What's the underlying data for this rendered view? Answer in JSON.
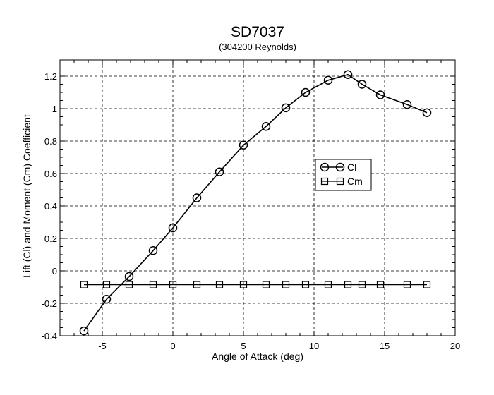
{
  "chart_data": {
    "type": "line",
    "title": "SD7037",
    "subtitle": "(304200 Reynolds)",
    "xlabel": "Angle of Attack (deg)",
    "ylabel": "Lift (Cl) and Moment (Cm) Coefficient",
    "xlim": [
      -8,
      20
    ],
    "ylim": [
      -0.4,
      1.3
    ],
    "xticks": [
      -5,
      0,
      5,
      10,
      15,
      20
    ],
    "xtick_labels": [
      "-5",
      "0",
      "5",
      "10",
      "15",
      "20"
    ],
    "yticks": [
      -0.4,
      -0.2,
      0,
      0.2,
      0.4,
      0.6,
      0.8,
      1,
      1.2
    ],
    "ytick_labels": [
      "-0.4",
      "-0.2",
      "0",
      "0.2",
      "0.4",
      "0.6",
      "0.8",
      "1",
      "1.2"
    ],
    "grid": true,
    "legend_position": "middle-right",
    "series": [
      {
        "name": "Cl",
        "marker": "circle",
        "color": "#000000",
        "x": [
          -6.3,
          -4.7,
          -3.1,
          -1.4,
          0.0,
          1.7,
          3.3,
          5.0,
          6.6,
          8.0,
          9.4,
          11.0,
          12.4,
          13.4,
          14.7,
          16.6,
          18.0
        ],
        "y": [
          -0.37,
          -0.175,
          -0.035,
          0.125,
          0.265,
          0.45,
          0.61,
          0.775,
          0.89,
          1.005,
          1.1,
          1.175,
          1.21,
          1.15,
          1.085,
          1.025,
          0.975
        ]
      },
      {
        "name": "Cm",
        "marker": "square",
        "color": "#000000",
        "x": [
          -6.3,
          -4.7,
          -3.1,
          -1.4,
          0.0,
          1.7,
          3.3,
          5.0,
          6.6,
          8.0,
          9.4,
          11.0,
          12.4,
          13.4,
          14.7,
          16.6,
          18.0
        ],
        "y": [
          -0.085,
          -0.085,
          -0.085,
          -0.085,
          -0.085,
          -0.085,
          -0.085,
          -0.085,
          -0.085,
          -0.085,
          -0.085,
          -0.085,
          -0.085,
          -0.085,
          -0.085,
          -0.085,
          -0.085
        ]
      }
    ]
  }
}
